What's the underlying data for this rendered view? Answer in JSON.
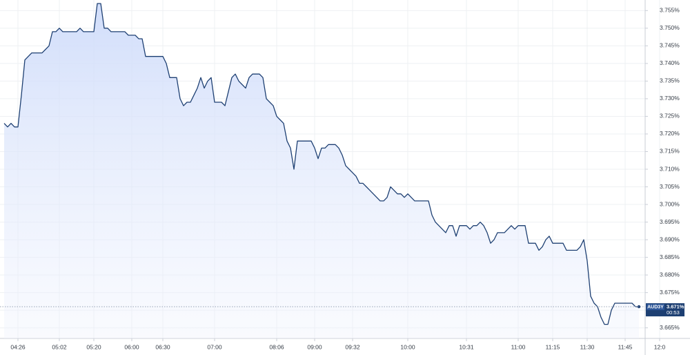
{
  "chart_data": {
    "type": "area",
    "color": "#1d3f72",
    "grid": true,
    "ylim": [
      3.662,
      3.758
    ],
    "yticks": [
      {
        "value": 3.665,
        "label": "3.665%"
      },
      {
        "value": 3.67,
        "label": "3.670%"
      },
      {
        "value": 3.675,
        "label": "3.675%"
      },
      {
        "value": 3.68,
        "label": "3.680%"
      },
      {
        "value": 3.685,
        "label": "3.685%"
      },
      {
        "value": 3.69,
        "label": "3.690%"
      },
      {
        "value": 3.695,
        "label": "3.695%"
      },
      {
        "value": 3.7,
        "label": "3.700%"
      },
      {
        "value": 3.705,
        "label": "3.705%"
      },
      {
        "value": 3.71,
        "label": "3.710%"
      },
      {
        "value": 3.715,
        "label": "3.715%"
      },
      {
        "value": 3.72,
        "label": "3.720%"
      },
      {
        "value": 3.725,
        "label": "3.725%"
      },
      {
        "value": 3.73,
        "label": "3.730%"
      },
      {
        "value": 3.735,
        "label": "3.735%"
      },
      {
        "value": 3.74,
        "label": "3.740%"
      },
      {
        "value": 3.745,
        "label": "3.745%"
      },
      {
        "value": 3.75,
        "label": "3.750%"
      },
      {
        "value": 3.755,
        "label": "3.755%"
      }
    ],
    "categories": [
      null,
      null,
      null,
      null,
      "04:26",
      null,
      null,
      null,
      null,
      null,
      null,
      null,
      null,
      null,
      null,
      null,
      "05:02",
      null,
      null,
      null,
      null,
      null,
      null,
      null,
      null,
      null,
      "05:20",
      null,
      null,
      null,
      null,
      null,
      null,
      null,
      null,
      null,
      null,
      "06:00",
      null,
      null,
      null,
      null,
      null,
      null,
      null,
      null,
      "06:30",
      null,
      null,
      null,
      null,
      null,
      null,
      null,
      null,
      null,
      null,
      null,
      null,
      null,
      null,
      "07:00",
      null,
      null,
      null,
      null,
      null,
      null,
      null,
      null,
      null,
      null,
      null,
      null,
      null,
      null,
      null,
      null,
      null,
      "08:06",
      null,
      null,
      null,
      null,
      null,
      null,
      null,
      null,
      null,
      null,
      "09:00",
      null,
      null,
      null,
      null,
      null,
      null,
      null,
      null,
      null,
      null,
      "09:32",
      null,
      null,
      null,
      null,
      null,
      null,
      null,
      null,
      null,
      null,
      null,
      null,
      null,
      null,
      null,
      "10:00",
      null,
      null,
      null,
      null,
      null,
      null,
      null,
      null,
      null,
      null,
      null,
      null,
      null,
      null,
      null,
      null,
      "10:31",
      null,
      null,
      null,
      null,
      null,
      null,
      null,
      null,
      null,
      null,
      null,
      null,
      null,
      null,
      "11:00",
      null,
      null,
      null,
      null,
      null,
      null,
      null,
      null,
      null,
      "11:15",
      null,
      null,
      null,
      null,
      null,
      null,
      null,
      null,
      null,
      "11:30",
      null,
      null,
      null,
      null,
      null,
      null,
      null,
      null,
      null,
      null,
      "11:45",
      null,
      null,
      null,
      null,
      null,
      null,
      null,
      null,
      null,
      "12:0"
    ],
    "values": [
      3.723,
      3.722,
      3.723,
      3.722,
      3.722,
      3.731,
      3.741,
      3.742,
      3.743,
      3.743,
      3.743,
      3.743,
      3.744,
      3.745,
      3.749,
      3.749,
      3.75,
      3.749,
      3.749,
      3.749,
      3.749,
      3.749,
      3.75,
      3.749,
      3.749,
      3.749,
      3.749,
      3.757,
      3.757,
      3.75,
      3.75,
      3.749,
      3.749,
      3.749,
      3.749,
      3.749,
      3.748,
      3.748,
      3.748,
      3.747,
      3.747,
      3.742,
      3.742,
      3.742,
      3.742,
      3.742,
      3.742,
      3.74,
      3.736,
      3.736,
      3.736,
      3.73,
      3.728,
      3.729,
      3.729,
      3.731,
      3.733,
      3.736,
      3.733,
      3.735,
      3.736,
      3.729,
      3.729,
      3.729,
      3.728,
      3.732,
      3.736,
      3.737,
      3.735,
      3.734,
      3.733,
      3.736,
      3.737,
      3.737,
      3.737,
      3.736,
      3.73,
      3.729,
      3.728,
      3.725,
      3.724,
      3.723,
      3.718,
      3.716,
      3.71,
      3.718,
      3.718,
      3.718,
      3.718,
      3.718,
      3.716,
      3.713,
      3.716,
      3.716,
      3.717,
      3.717,
      3.717,
      3.716,
      3.714,
      3.711,
      3.71,
      3.709,
      3.708,
      3.706,
      3.706,
      3.705,
      3.704,
      3.703,
      3.702,
      3.701,
      3.701,
      3.702,
      3.705,
      3.704,
      3.703,
      3.703,
      3.702,
      3.703,
      3.702,
      3.701,
      3.701,
      3.701,
      3.701,
      3.701,
      3.697,
      3.695,
      3.694,
      3.693,
      3.692,
      3.694,
      3.694,
      3.691,
      3.694,
      3.694,
      3.694,
      3.693,
      3.694,
      3.694,
      3.695,
      3.694,
      3.692,
      3.689,
      3.69,
      3.692,
      3.692,
      3.692,
      3.693,
      3.694,
      3.693,
      3.694,
      3.694,
      3.694,
      3.689,
      3.689,
      3.689,
      3.687,
      3.688,
      3.69,
      3.691,
      3.689,
      3.689,
      3.689,
      3.689,
      3.687,
      3.687,
      3.687,
      3.687,
      3.688,
      3.69,
      3.684,
      3.674,
      3.672,
      3.671,
      3.668,
      3.666,
      3.666,
      3.67,
      3.672,
      3.672,
      3.672,
      3.672,
      3.672,
      3.672,
      3.671,
      3.671,
      null,
      null,
      null,
      null,
      null,
      null
    ],
    "last_label": {
      "symbol": "AUD3Y",
      "value": 3.671,
      "value_label": "3.671%",
      "countdown": "00:53"
    }
  }
}
